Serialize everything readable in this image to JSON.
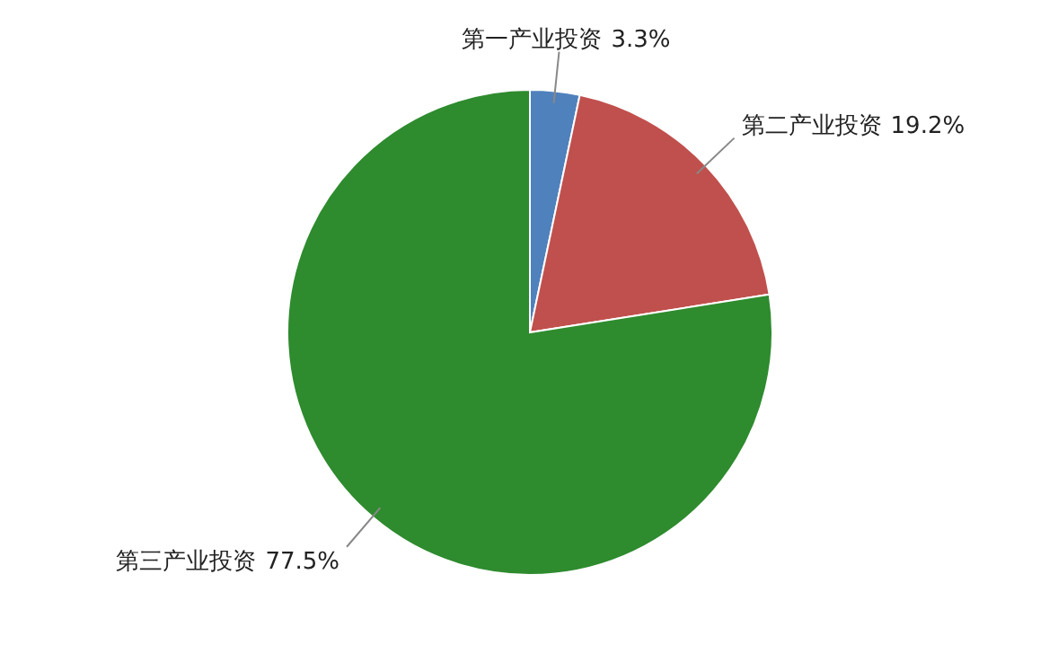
{
  "chart_data": {
    "type": "pie",
    "categories": [
      "第一产业投资",
      "第二产业投资",
      "第三产业投资"
    ],
    "values": [
      3.3,
      19.2,
      77.5
    ],
    "value_labels": [
      "3.3%",
      "19.2%",
      "77.5%"
    ],
    "colors": [
      "#4f81bd",
      "#c0504d",
      "#2e8b2e"
    ]
  }
}
